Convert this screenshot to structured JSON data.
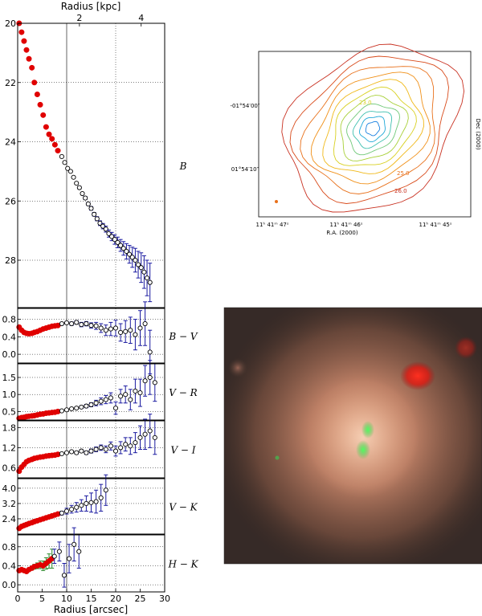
{
  "chart_data": [
    {
      "type": "scatter",
      "panel": "B",
      "ylabel": "B",
      "ylim": [
        20,
        29.6
      ],
      "y_inverted": true,
      "xlim": [
        0,
        30
      ],
      "top_axis_label": "Radius [kpc]",
      "top_ticks": [
        {
          "value": 2,
          "label": "2"
        },
        {
          "value": 4,
          "label": "4"
        }
      ],
      "yticks": [
        20,
        22,
        24,
        26,
        28
      ],
      "grid": "dotted",
      "vertical_line_at": 10,
      "series": [
        {
          "marker": "filled-red",
          "color": "#e00000",
          "x": [
            0.3,
            0.8,
            1.3,
            1.8,
            2.3,
            2.9,
            3.4,
            4.0,
            4.6,
            5.2,
            5.8,
            6.4,
            7.0,
            7.6,
            8.2
          ],
          "y": [
            20.0,
            20.3,
            20.6,
            20.9,
            21.2,
            21.5,
            22.0,
            22.4,
            22.75,
            23.1,
            23.5,
            23.75,
            23.9,
            24.1,
            24.3
          ]
        },
        {
          "marker": "open-circle",
          "color": "#000000",
          "err_color": "#1a1aa0",
          "x": [
            9.0,
            9.6,
            10.2,
            10.8,
            11.4,
            12.0,
            12.6,
            13.2,
            13.8,
            14.4,
            15.0,
            15.6,
            16.2,
            16.8,
            17.4,
            18.0,
            18.6,
            19.2,
            19.8,
            20.4,
            21.0,
            21.6,
            22.2,
            22.8,
            23.4,
            24.0,
            24.6,
            25.2,
            25.8,
            26.4,
            27.0
          ],
          "y": [
            24.5,
            24.7,
            24.9,
            25.0,
            25.2,
            25.4,
            25.55,
            25.75,
            25.9,
            26.1,
            26.25,
            26.45,
            26.6,
            26.75,
            26.85,
            26.95,
            27.1,
            27.2,
            27.3,
            27.4,
            27.5,
            27.6,
            27.7,
            27.8,
            27.9,
            28.0,
            28.15,
            28.25,
            28.4,
            28.6,
            28.75
          ],
          "err": [
            0.02,
            0.02,
            0.02,
            0.03,
            0.03,
            0.03,
            0.04,
            0.04,
            0.05,
            0.05,
            0.06,
            0.06,
            0.07,
            0.08,
            0.09,
            0.1,
            0.12,
            0.14,
            0.16,
            0.18,
            0.2,
            0.23,
            0.26,
            0.3,
            0.34,
            0.4,
            0.45,
            0.5,
            0.55,
            0.6,
            0.65
          ]
        }
      ]
    },
    {
      "type": "scatter",
      "panel": "B-V",
      "ylabel": "B − V",
      "ylim": [
        -0.2,
        1.05
      ],
      "yticks": [
        0.0,
        0.4,
        0.8
      ],
      "ytick_labels": [
        "0.0",
        "0.4",
        "0.8"
      ],
      "xlim": [
        0,
        30
      ],
      "series": [
        {
          "marker": "filled-red",
          "color": "#e00000",
          "x": [
            0.3,
            0.8,
            1.3,
            1.8,
            2.3,
            2.9,
            3.4,
            4.0,
            4.6,
            5.2,
            5.8,
            6.4,
            7.0,
            7.6,
            8.2
          ],
          "y": [
            0.62,
            0.55,
            0.5,
            0.48,
            0.47,
            0.48,
            0.5,
            0.52,
            0.55,
            0.58,
            0.6,
            0.62,
            0.64,
            0.65,
            0.66
          ]
        },
        {
          "marker": "open-circle",
          "color": "#000000",
          "err_color": "#1a1aa0",
          "x": [
            9.0,
            10.0,
            11.0,
            12.0,
            13.0,
            14.0,
            15.0,
            16.0,
            17.0,
            18.0,
            19.0,
            20.0,
            21.0,
            22.0,
            23.0,
            24.0,
            25.0,
            26.0,
            27.0
          ],
          "y": [
            0.7,
            0.72,
            0.7,
            0.73,
            0.68,
            0.7,
            0.66,
            0.65,
            0.6,
            0.55,
            0.58,
            0.6,
            0.5,
            0.52,
            0.55,
            0.45,
            0.6,
            0.7,
            0.05
          ],
          "err": [
            0.03,
            0.03,
            0.04,
            0.04,
            0.05,
            0.05,
            0.06,
            0.08,
            0.1,
            0.12,
            0.15,
            0.18,
            0.2,
            0.25,
            0.3,
            0.35,
            0.4,
            0.5,
            0.5
          ]
        }
      ]
    },
    {
      "type": "scatter",
      "panel": "V-R",
      "ylabel": "V − R",
      "ylim": [
        0.25,
        1.9
      ],
      "yticks": [
        0.5,
        1.0,
        1.5
      ],
      "ytick_labels": [
        "0.5",
        "1.0",
        "1.5"
      ],
      "xlim": [
        0,
        30
      ],
      "series": [
        {
          "marker": "filled-red",
          "color": "#e00000",
          "x": [
            0.3,
            0.8,
            1.3,
            1.8,
            2.3,
            2.9,
            3.4,
            4.0,
            4.6,
            5.2,
            5.8,
            6.4,
            7.0,
            7.6,
            8.2
          ],
          "y": [
            0.3,
            0.32,
            0.33,
            0.35,
            0.36,
            0.37,
            0.38,
            0.4,
            0.42,
            0.43,
            0.45,
            0.46,
            0.47,
            0.48,
            0.5
          ]
        },
        {
          "marker": "open-circle",
          "color": "#000000",
          "err_color": "#1a1aa0",
          "x": [
            9.0,
            10.0,
            11.0,
            12.0,
            13.0,
            14.0,
            15.0,
            16.0,
            17.0,
            18.0,
            19.0,
            20.0,
            21.0,
            22.0,
            23.0,
            24.0,
            25.0,
            26.0,
            27.0,
            28.0
          ],
          "y": [
            0.52,
            0.55,
            0.58,
            0.6,
            0.63,
            0.66,
            0.7,
            0.75,
            0.8,
            0.85,
            0.9,
            0.6,
            0.95,
            1.0,
            0.85,
            1.1,
            1.05,
            1.4,
            1.5,
            1.35
          ],
          "err": [
            0.02,
            0.02,
            0.03,
            0.03,
            0.04,
            0.05,
            0.06,
            0.08,
            0.1,
            0.12,
            0.15,
            0.18,
            0.2,
            0.25,
            0.3,
            0.35,
            0.4,
            0.45,
            0.5,
            0.55
          ]
        }
      ]
    },
    {
      "type": "scatter",
      "panel": "V-I",
      "ylabel": "V − I",
      "ylim": [
        0.3,
        2.0
      ],
      "yticks": [
        0.6,
        1.2,
        1.8
      ],
      "ytick_labels": [
        "0.6",
        "1.2",
        "1.8"
      ],
      "xlim": [
        0,
        30
      ],
      "series": [
        {
          "marker": "filled-red",
          "color": "#e00000",
          "x": [
            0.3,
            0.8,
            1.3,
            1.8,
            2.3,
            2.9,
            3.4,
            4.0,
            4.6,
            5.2,
            5.8,
            6.4,
            7.0,
            7.6,
            8.2
          ],
          "y": [
            0.5,
            0.62,
            0.7,
            0.78,
            0.82,
            0.85,
            0.88,
            0.9,
            0.92,
            0.93,
            0.95,
            0.96,
            0.97,
            0.98,
            1.0
          ]
        },
        {
          "marker": "open-circle",
          "color": "#000000",
          "err_color": "#1a1aa0",
          "x": [
            9.0,
            10.0,
            11.0,
            12.0,
            13.0,
            14.0,
            15.0,
            16.0,
            17.0,
            18.0,
            19.0,
            20.0,
            21.0,
            22.0,
            23.0,
            24.0,
            25.0,
            26.0,
            27.0,
            28.0
          ],
          "y": [
            1.02,
            1.05,
            1.08,
            1.05,
            1.1,
            1.05,
            1.1,
            1.15,
            1.2,
            1.15,
            1.25,
            1.1,
            1.2,
            1.3,
            1.25,
            1.35,
            1.5,
            1.6,
            1.7,
            1.5
          ],
          "err": [
            0.02,
            0.03,
            0.03,
            0.04,
            0.04,
            0.05,
            0.06,
            0.07,
            0.08,
            0.1,
            0.12,
            0.15,
            0.18,
            0.2,
            0.25,
            0.3,
            0.35,
            0.45,
            0.5,
            0.5
          ]
        }
      ]
    },
    {
      "type": "scatter",
      "panel": "V-K",
      "ylabel": "V − K",
      "ylim": [
        1.6,
        4.5
      ],
      "yticks": [
        2.4,
        3.2,
        4.0
      ],
      "ytick_labels": [
        "2.4",
        "3.2",
        "4.0"
      ],
      "xlim": [
        0,
        30
      ],
      "series": [
        {
          "marker": "filled-red",
          "color": "#e00000",
          "x": [
            0.3,
            0.8,
            1.3,
            1.8,
            2.3,
            2.9,
            3.4,
            4.0,
            4.6,
            5.2,
            5.8,
            6.4,
            7.0,
            7.6,
            8.2
          ],
          "y": [
            1.9,
            2.0,
            2.05,
            2.1,
            2.15,
            2.2,
            2.25,
            2.3,
            2.35,
            2.4,
            2.45,
            2.5,
            2.55,
            2.6,
            2.65
          ]
        },
        {
          "marker": "open-circle",
          "color": "#000000",
          "err_color": "#1a1aa0",
          "x": [
            9.0,
            10.0,
            11.0,
            12.0,
            13.0,
            14.0,
            15.0,
            16.0,
            17.0,
            18.0
          ],
          "y": [
            2.7,
            2.8,
            2.9,
            3.0,
            3.1,
            3.2,
            3.25,
            3.3,
            3.5,
            3.9
          ],
          "err": [
            0.1,
            0.15,
            0.2,
            0.25,
            0.3,
            0.4,
            0.5,
            0.6,
            0.7,
            0.8
          ]
        }
      ]
    },
    {
      "type": "scatter",
      "panel": "H-K",
      "ylabel": "H − K",
      "ylim": [
        -0.15,
        1.05
      ],
      "yticks": [
        0.0,
        0.4,
        0.8
      ],
      "ytick_labels": [
        "0.0",
        "0.4",
        "0.8"
      ],
      "xlim": [
        0,
        30
      ],
      "xlabel": "Radius [arcsec]",
      "xticks": [
        0,
        5,
        10,
        15,
        20,
        25,
        30
      ],
      "series": [
        {
          "marker": "filled-red",
          "color": "#e00000",
          "err_color": "#2a8a2a",
          "x": [
            0.3,
            0.8,
            1.3,
            1.8,
            2.3,
            2.9,
            3.4,
            4.0,
            4.6,
            5.2,
            5.8,
            6.4,
            7.0
          ],
          "y": [
            0.3,
            0.32,
            0.3,
            0.28,
            0.32,
            0.35,
            0.38,
            0.4,
            0.42,
            0.4,
            0.45,
            0.5,
            0.55
          ],
          "err": [
            0.02,
            0.02,
            0.02,
            0.03,
            0.03,
            0.04,
            0.05,
            0.06,
            0.08,
            0.1,
            0.12,
            0.15,
            0.2
          ]
        },
        {
          "marker": "open-circle",
          "color": "#000000",
          "err_color": "#1a1aa0",
          "x": [
            7.5,
            8.5,
            9.5,
            10.5,
            11.5,
            12.5
          ],
          "y": [
            0.6,
            0.7,
            0.2,
            0.55,
            0.85,
            0.7
          ],
          "err": [
            0.15,
            0.2,
            0.25,
            0.3,
            0.35,
            0.35
          ]
        }
      ]
    }
  ],
  "contour_map": {
    "xlabel": "R.A. (2000)",
    "ylabel": "Dec (2000)",
    "xticks": [
      "11ʰ 41ᵐ 47ˢ",
      "11ʰ 41ᵐ 46ˢ",
      "11ʰ 41ᵐ 45ˢ"
    ],
    "yticks": [
      "-01°54′00″",
      "01°54′10″"
    ],
    "contour_labels": [
      "23.0",
      "25.0",
      "26.0"
    ],
    "levels": [
      {
        "mag": 26.0,
        "color": "#c83020"
      },
      {
        "mag": 25.5,
        "color": "#d84a1a"
      },
      {
        "mag": 25.0,
        "color": "#e8701a"
      },
      {
        "mag": 24.5,
        "color": "#f09018"
      },
      {
        "mag": 24.0,
        "color": "#f0b818"
      },
      {
        "mag": 23.5,
        "color": "#d8d020"
      },
      {
        "mag": 23.0,
        "color": "#a8d038"
      },
      {
        "mag": 22.5,
        "color": "#70c878"
      },
      {
        "mag": 22.0,
        "color": "#40c0b0"
      },
      {
        "mag": 21.5,
        "color": "#20a8d8"
      },
      {
        "mag": 21.0,
        "color": "#1880e0"
      }
    ]
  },
  "color_image": {
    "background": "#3c2a22",
    "galaxy_color": "#c8866a",
    "star_color": "#ff2010",
    "cluster_color": "#30e040"
  }
}
